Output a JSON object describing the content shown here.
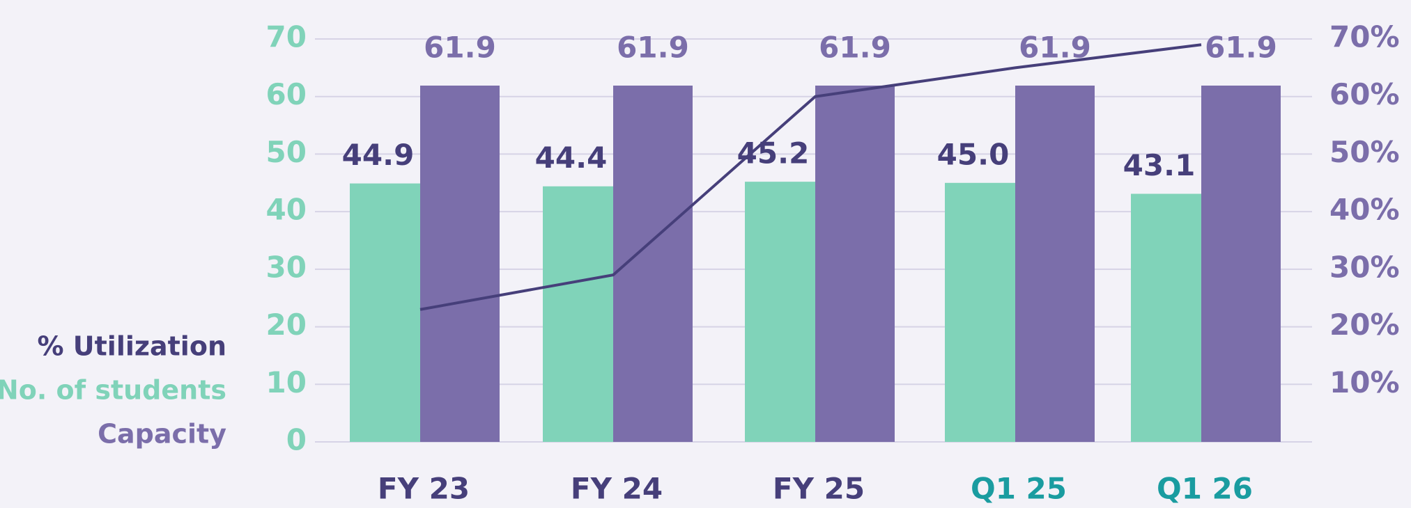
{
  "chart_data": {
    "type": "bar-line",
    "categories": [
      "FY 23",
      "FY 24",
      "FY 25",
      "Q1 25",
      "Q1 26"
    ],
    "category_colors": [
      "#463f7a",
      "#463f7a",
      "#463f7a",
      "#1a9ca0",
      "#1a9ca0"
    ],
    "series": [
      {
        "name": "% Utilization",
        "color": "#463f7a",
        "type": "line",
        "axis": "y2",
        "values": [
          23,
          29,
          60,
          65,
          69
        ]
      },
      {
        "name": "No. of students",
        "color": "#80d3b9",
        "type": "bar",
        "values": [
          44.9,
          44.4,
          45.2,
          45.0,
          43.1
        ],
        "value_labels": [
          "44.9",
          "44.4",
          "45.2",
          "45.0",
          "43.1"
        ]
      },
      {
        "name": "Capacity",
        "color": "#7b6eaa",
        "type": "bar",
        "values": [
          61.9,
          61.9,
          61.9,
          61.9,
          61.9
        ],
        "value_labels": [
          "61.9",
          "61.9",
          "61.9",
          "61.9",
          "61.9"
        ]
      }
    ],
    "ylim": [
      0,
      70
    ],
    "yticks": [
      0,
      10,
      20,
      30,
      40,
      50,
      60,
      70
    ],
    "y2lim": [
      0,
      70
    ],
    "y2ticks": [
      {
        "value": 10,
        "label": "10%"
      },
      {
        "value": 20,
        "label": "20%"
      },
      {
        "value": 30,
        "label": "30%"
      },
      {
        "value": 40,
        "label": "40%"
      },
      {
        "value": 50,
        "label": "50%"
      },
      {
        "value": 60,
        "label": "60%"
      },
      {
        "value": 70,
        "label": "70%"
      }
    ],
    "grid": true
  }
}
